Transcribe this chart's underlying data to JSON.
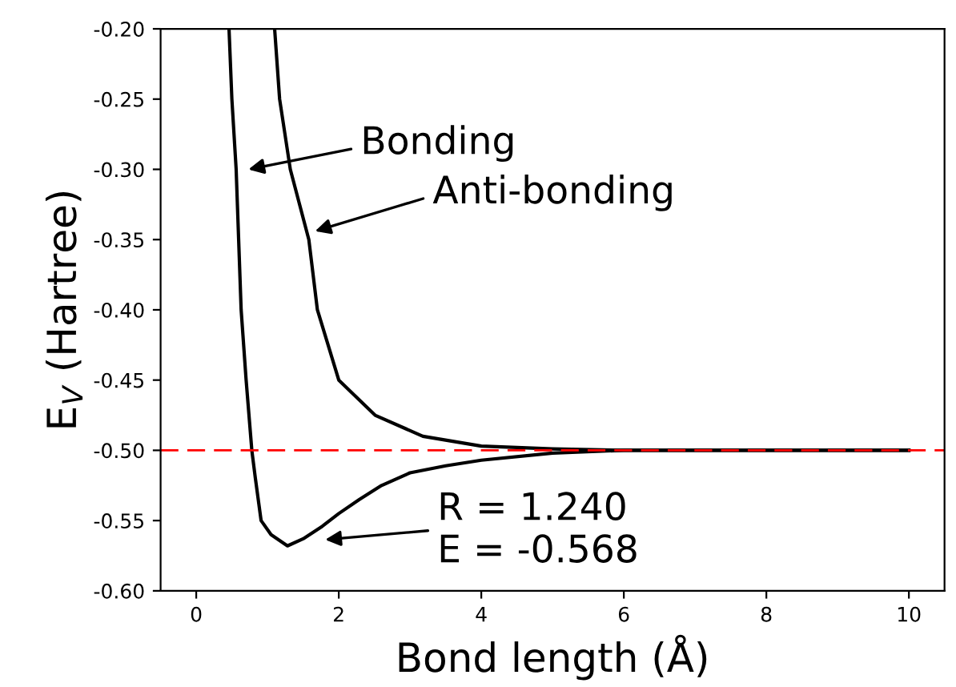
{
  "chart_data": {
    "type": "line",
    "xlabel": "Bond length (Å)",
    "ylabel": "E$_{V}$ (Hartree)",
    "xlim": [
      -0.5,
      10.5
    ],
    "xticks": [
      0,
      2,
      4,
      6,
      8,
      10
    ],
    "ylim": [
      -0.6,
      -0.2
    ],
    "yticks": [
      {
        "value": -0.6,
        "label": "-0.60"
      },
      -0.55,
      {
        "value": -0.5,
        "label": "-0.50"
      },
      -0.45,
      {
        "value": -0.4,
        "label": "-0.40"
      },
      -0.35,
      {
        "value": -0.3,
        "label": "-0.30"
      },
      -0.25,
      {
        "value": -0.2,
        "label": "-0.20"
      }
    ],
    "grid": false,
    "legend": false,
    "marker": "none",
    "line_style": "solid",
    "series": [
      {
        "color": "#000000",
        "x": [
          0.46,
          0.5,
          0.56,
          0.63,
          0.7,
          0.78,
          0.83,
          0.91,
          1.05,
          1.28,
          1.5,
          1.77,
          2.0,
          2.29,
          2.6,
          3.0,
          3.5,
          4.0,
          5.0,
          6.0,
          8.0,
          10.0
        ],
        "values": [
          -0.2,
          -0.25,
          -0.3,
          -0.4,
          -0.45,
          -0.5,
          -0.52,
          -0.55,
          -0.56,
          -0.568,
          -0.563,
          -0.554,
          -0.545,
          -0.535,
          -0.525,
          -0.516,
          -0.511,
          -0.507,
          -0.502,
          -0.5,
          -0.5,
          -0.5
        ]
      },
      {
        "color": "#000000",
        "x": [
          1.1,
          1.17,
          1.32,
          1.58,
          1.7,
          2.0,
          2.51,
          3.18,
          4.0,
          5.0,
          6.0,
          8.0,
          10.0
        ],
        "values": [
          -0.2,
          -0.25,
          -0.3,
          -0.35,
          -0.4,
          -0.45,
          -0.475,
          -0.49,
          -0.497,
          -0.499,
          -0.5,
          -0.5,
          -0.5
        ]
      }
    ],
    "ref_lines": [
      {
        "axis": "y",
        "value": -0.5,
        "color": "#ff0000",
        "line_style": "dashed"
      }
    ],
    "annotations": [
      "Bonding",
      "Anti-bonding",
      "R = 1.240\nE = -0.568"
    ]
  }
}
